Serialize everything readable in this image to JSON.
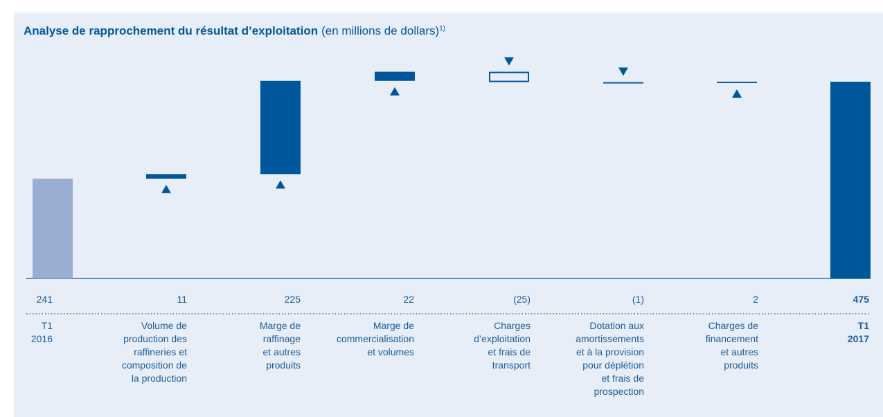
{
  "chart_data": {
    "type": "waterfall",
    "title": "Analyse de rapprochement du résultat d’exploitation",
    "title_note": "(en millions de dollars)",
    "footnote_marker": "1)",
    "categories": [
      "T1\n2016",
      "Volume de\nproduction des\nraffineries et\ncomposition de\nla production",
      "Marge de\nraffinage\net autres\nproduits",
      "Marge de\ncommercialisation\net volumes",
      "Charges\nd’exploitation\net frais de\ntransport",
      "Dotation aux\namortissements\net à la provision\npour déplétion\net frais de\nprospection",
      "Charges de\nfinancement\net autres\nproduits",
      "T1\n2017"
    ],
    "values": [
      241,
      11,
      225,
      22,
      -25,
      -1,
      2,
      475
    ],
    "value_labels": [
      "241",
      "11",
      "225",
      "22",
      "(25)",
      "(1)",
      "2",
      "475"
    ],
    "ylim": [
      0,
      500
    ],
    "start_color": "#9aaed4",
    "color": "#00569b"
  }
}
